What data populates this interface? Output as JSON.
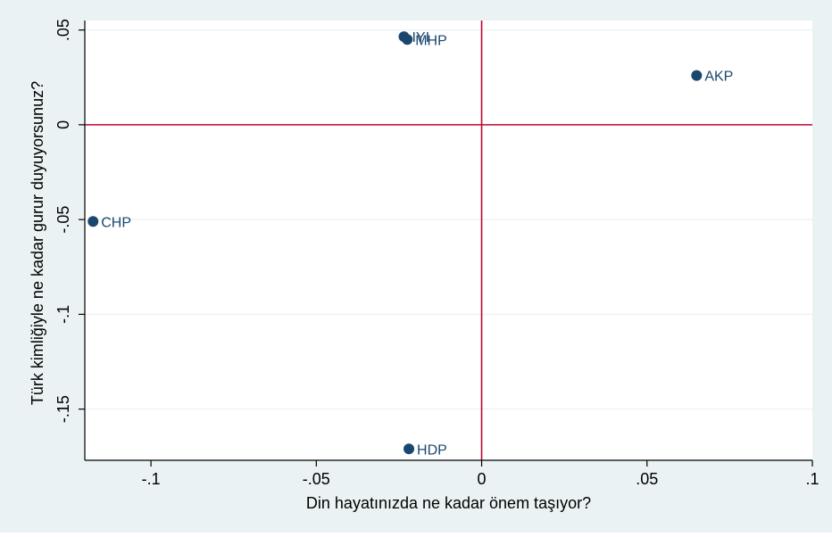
{
  "chart_data": {
    "type": "scatter",
    "title": "",
    "xlabel": "Din hayatınızda ne kadar önem taşıyor?",
    "ylabel": "Türk kimliğiyle ne kadar gurur duyuyorsunuz?",
    "xlim": [
      -0.12,
      0.1
    ],
    "ylim": [
      -0.177,
      0.055
    ],
    "x_ticks": [
      {
        "value": -0.1,
        "label": "-.1"
      },
      {
        "value": -0.05,
        "label": "-.05"
      },
      {
        "value": 0,
        "label": "0"
      },
      {
        "value": 0.05,
        "label": ".05"
      },
      {
        "value": 0.1,
        "label": ".1"
      }
    ],
    "y_ticks": [
      {
        "value": 0.05,
        "label": ".05"
      },
      {
        "value": 0,
        "label": "0"
      },
      {
        "value": -0.05,
        "label": "-.05"
      },
      {
        "value": -0.1,
        "label": "-.1"
      },
      {
        "value": -0.15,
        "label": "-.15"
      }
    ],
    "reference_lines": {
      "x": 0,
      "y": 0
    },
    "grid": true,
    "points": [
      {
        "label": "IYI",
        "x": -0.0235,
        "y": 0.0465
      },
      {
        "label": "MHP",
        "x": -0.0225,
        "y": 0.045
      },
      {
        "label": "AKP",
        "x": 0.065,
        "y": 0.026
      },
      {
        "label": "CHP",
        "x": -0.1175,
        "y": -0.051
      },
      {
        "label": "HDP",
        "x": -0.022,
        "y": -0.171
      }
    ],
    "colors": {
      "background": "#eaf2f3",
      "plot_background": "#ffffff",
      "marker": "#1a476f",
      "reference_line": "#c10534",
      "grid": "#eaf2f3",
      "text": "#000000"
    }
  }
}
